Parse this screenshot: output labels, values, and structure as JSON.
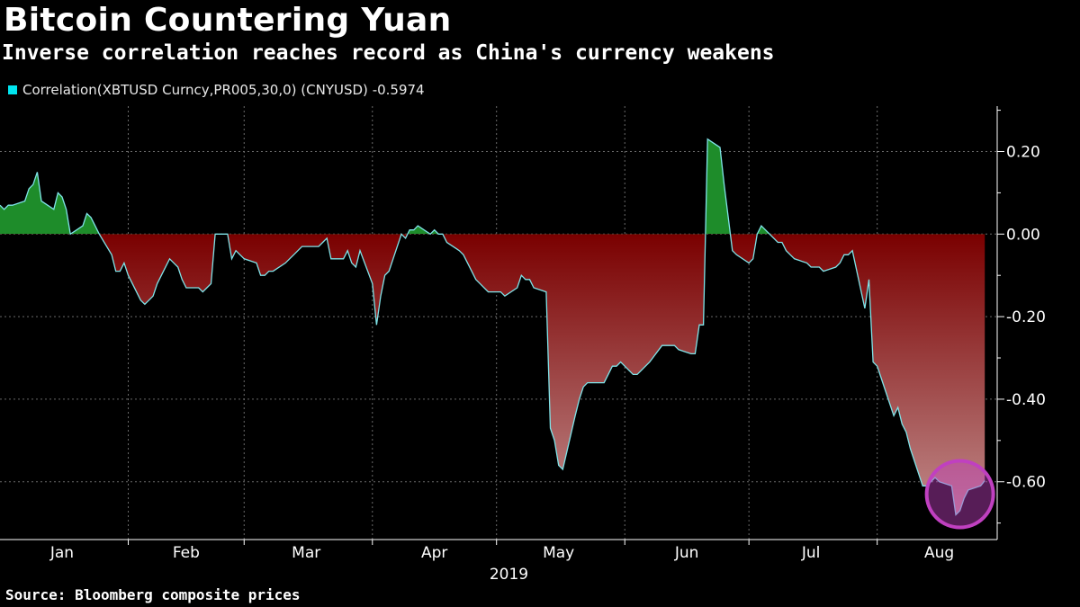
{
  "header": {
    "title": "Bitcoin Countering Yuan",
    "subtitle": "Inverse correlation reaches record as China's currency weakens"
  },
  "footer": {
    "source": "Source: Bloomberg composite prices"
  },
  "colors": {
    "background": "#000000",
    "line": "#7fe3e8",
    "positive_fill": "#1e8c2a",
    "negative_fill_top": "#7a0000",
    "negative_fill_bottom": "#c08a8a",
    "grid": "#6a6a6a",
    "highlight_circle": "#c040c0"
  },
  "chart_data": {
    "type": "area",
    "title": "Bitcoin Countering Yuan",
    "subtitle": "Inverse correlation reaches record as China's currency weakens",
    "legend": [
      {
        "name": "Correlation(XBTUSD Curncy,PR005,30,0) (CNYUSD)",
        "last_value": "-0.5974",
        "color": "#00e5ef"
      }
    ],
    "legend_position": "top-left",
    "y_axis": {
      "position": "right",
      "ticks": [
        0.2,
        0.0,
        -0.2,
        -0.4,
        -0.6
      ],
      "tick_labels": [
        "0.20",
        "0.00",
        "-0.20",
        "-0.40",
        "-0.60"
      ],
      "ylim": [
        -0.74,
        0.31
      ]
    },
    "x_axis": {
      "month_labels": [
        "Jan",
        "Feb",
        "Mar",
        "Apr",
        "May",
        "Jun",
        "Jul",
        "Aug"
      ],
      "year_label": "2019",
      "xlim": [
        "2019-01-01",
        "2019-08-30"
      ]
    },
    "grid": true,
    "highlight": {
      "shape": "circle",
      "around": "late Aug minimum",
      "center_date": "2019-08-21",
      "center_value": -0.63
    },
    "series": [
      {
        "name": "Correlation(XBTUSD Curncy,PR005,30,0) (CNYUSD)",
        "points": [
          [
            "2019-01-01",
            0.07
          ],
          [
            "2019-01-02",
            0.06
          ],
          [
            "2019-01-03",
            0.07
          ],
          [
            "2019-01-04",
            0.07
          ],
          [
            "2019-01-07",
            0.08
          ],
          [
            "2019-01-08",
            0.11
          ],
          [
            "2019-01-09",
            0.12
          ],
          [
            "2019-01-10",
            0.15
          ],
          [
            "2019-01-11",
            0.08
          ],
          [
            "2019-01-14",
            0.06
          ],
          [
            "2019-01-15",
            0.1
          ],
          [
            "2019-01-16",
            0.09
          ],
          [
            "2019-01-17",
            0.06
          ],
          [
            "2019-01-18",
            0.0
          ],
          [
            "2019-01-21",
            0.02
          ],
          [
            "2019-01-22",
            0.05
          ],
          [
            "2019-01-23",
            0.04
          ],
          [
            "2019-01-24",
            0.02
          ],
          [
            "2019-01-25",
            0.0
          ],
          [
            "2019-01-28",
            -0.05
          ],
          [
            "2019-01-29",
            -0.09
          ],
          [
            "2019-01-30",
            -0.09
          ],
          [
            "2019-01-31",
            -0.07
          ],
          [
            "2019-02-01",
            -0.1
          ],
          [
            "2019-02-04",
            -0.16
          ],
          [
            "2019-02-05",
            -0.17
          ],
          [
            "2019-02-06",
            -0.16
          ],
          [
            "2019-02-07",
            -0.15
          ],
          [
            "2019-02-08",
            -0.12
          ],
          [
            "2019-02-11",
            -0.06
          ],
          [
            "2019-02-12",
            -0.07
          ],
          [
            "2019-02-13",
            -0.08
          ],
          [
            "2019-02-14",
            -0.11
          ],
          [
            "2019-02-15",
            -0.13
          ],
          [
            "2019-02-18",
            -0.13
          ],
          [
            "2019-02-19",
            -0.14
          ],
          [
            "2019-02-20",
            -0.13
          ],
          [
            "2019-02-21",
            -0.12
          ],
          [
            "2019-02-22",
            0.0
          ],
          [
            "2019-02-25",
            0.0
          ],
          [
            "2019-02-26",
            -0.06
          ],
          [
            "2019-02-27",
            -0.04
          ],
          [
            "2019-02-28",
            -0.05
          ],
          [
            "2019-03-01",
            -0.06
          ],
          [
            "2019-03-04",
            -0.07
          ],
          [
            "2019-03-05",
            -0.1
          ],
          [
            "2019-03-06",
            -0.1
          ],
          [
            "2019-03-07",
            -0.09
          ],
          [
            "2019-03-08",
            -0.09
          ],
          [
            "2019-03-11",
            -0.07
          ],
          [
            "2019-03-12",
            -0.06
          ],
          [
            "2019-03-13",
            -0.05
          ],
          [
            "2019-03-14",
            -0.04
          ],
          [
            "2019-03-15",
            -0.03
          ],
          [
            "2019-03-18",
            -0.03
          ],
          [
            "2019-03-19",
            -0.03
          ],
          [
            "2019-03-20",
            -0.02
          ],
          [
            "2019-03-21",
            -0.01
          ],
          [
            "2019-03-22",
            -0.06
          ],
          [
            "2019-03-25",
            -0.06
          ],
          [
            "2019-03-26",
            -0.04
          ],
          [
            "2019-03-27",
            -0.07
          ],
          [
            "2019-03-28",
            -0.08
          ],
          [
            "2019-03-29",
            -0.04
          ],
          [
            "2019-04-01",
            -0.12
          ],
          [
            "2019-04-02",
            -0.22
          ],
          [
            "2019-04-03",
            -0.15
          ],
          [
            "2019-04-04",
            -0.1
          ],
          [
            "2019-04-05",
            -0.09
          ],
          [
            "2019-04-08",
            0.0
          ],
          [
            "2019-04-09",
            -0.01
          ],
          [
            "2019-04-10",
            0.01
          ],
          [
            "2019-04-11",
            0.01
          ],
          [
            "2019-04-12",
            0.02
          ],
          [
            "2019-04-15",
            0.0
          ],
          [
            "2019-04-16",
            0.01
          ],
          [
            "2019-04-17",
            0.0
          ],
          [
            "2019-04-18",
            0.0
          ],
          [
            "2019-04-19",
            -0.02
          ],
          [
            "2019-04-22",
            -0.04
          ],
          [
            "2019-04-23",
            -0.05
          ],
          [
            "2019-04-24",
            -0.07
          ],
          [
            "2019-04-25",
            -0.09
          ],
          [
            "2019-04-26",
            -0.11
          ],
          [
            "2019-04-29",
            -0.14
          ],
          [
            "2019-04-30",
            -0.14
          ],
          [
            "2019-05-01",
            -0.14
          ],
          [
            "2019-05-02",
            -0.14
          ],
          [
            "2019-05-03",
            -0.15
          ],
          [
            "2019-05-06",
            -0.13
          ],
          [
            "2019-05-07",
            -0.1
          ],
          [
            "2019-05-08",
            -0.11
          ],
          [
            "2019-05-09",
            -0.11
          ],
          [
            "2019-05-10",
            -0.13
          ],
          [
            "2019-05-13",
            -0.14
          ],
          [
            "2019-05-14",
            -0.47
          ],
          [
            "2019-05-15",
            -0.5
          ],
          [
            "2019-05-16",
            -0.56
          ],
          [
            "2019-05-17",
            -0.57
          ],
          [
            "2019-05-20",
            -0.44
          ],
          [
            "2019-05-21",
            -0.4
          ],
          [
            "2019-05-22",
            -0.37
          ],
          [
            "2019-05-23",
            -0.36
          ],
          [
            "2019-05-24",
            -0.36
          ],
          [
            "2019-05-27",
            -0.36
          ],
          [
            "2019-05-28",
            -0.34
          ],
          [
            "2019-05-29",
            -0.32
          ],
          [
            "2019-05-30",
            -0.32
          ],
          [
            "2019-05-31",
            -0.31
          ],
          [
            "2019-06-03",
            -0.34
          ],
          [
            "2019-06-04",
            -0.34
          ],
          [
            "2019-06-05",
            -0.33
          ],
          [
            "2019-06-06",
            -0.32
          ],
          [
            "2019-06-07",
            -0.31
          ],
          [
            "2019-06-10",
            -0.27
          ],
          [
            "2019-06-11",
            -0.27
          ],
          [
            "2019-06-12",
            -0.27
          ],
          [
            "2019-06-13",
            -0.27
          ],
          [
            "2019-06-14",
            -0.28
          ],
          [
            "2019-06-17",
            -0.29
          ],
          [
            "2019-06-18",
            -0.29
          ],
          [
            "2019-06-19",
            -0.22
          ],
          [
            "2019-06-20",
            -0.22
          ],
          [
            "2019-06-21",
            0.23
          ],
          [
            "2019-06-24",
            0.21
          ],
          [
            "2019-06-25",
            0.12
          ],
          [
            "2019-06-26",
            0.04
          ],
          [
            "2019-06-27",
            -0.04
          ],
          [
            "2019-06-28",
            -0.05
          ],
          [
            "2019-07-01",
            -0.07
          ],
          [
            "2019-07-02",
            -0.06
          ],
          [
            "2019-07-03",
            0.0
          ],
          [
            "2019-07-04",
            0.02
          ],
          [
            "2019-07-05",
            0.01
          ],
          [
            "2019-07-08",
            -0.02
          ],
          [
            "2019-07-09",
            -0.02
          ],
          [
            "2019-07-10",
            -0.04
          ],
          [
            "2019-07-11",
            -0.05
          ],
          [
            "2019-07-12",
            -0.06
          ],
          [
            "2019-07-15",
            -0.07
          ],
          [
            "2019-07-16",
            -0.08
          ],
          [
            "2019-07-17",
            -0.08
          ],
          [
            "2019-07-18",
            -0.08
          ],
          [
            "2019-07-19",
            -0.09
          ],
          [
            "2019-07-22",
            -0.08
          ],
          [
            "2019-07-23",
            -0.07
          ],
          [
            "2019-07-24",
            -0.05
          ],
          [
            "2019-07-25",
            -0.05
          ],
          [
            "2019-07-26",
            -0.04
          ],
          [
            "2019-07-29",
            -0.18
          ],
          [
            "2019-07-30",
            -0.11
          ],
          [
            "2019-07-31",
            -0.31
          ],
          [
            "2019-08-01",
            -0.32
          ],
          [
            "2019-08-02",
            -0.35
          ],
          [
            "2019-08-05",
            -0.44
          ],
          [
            "2019-08-06",
            -0.42
          ],
          [
            "2019-08-07",
            -0.46
          ],
          [
            "2019-08-08",
            -0.48
          ],
          [
            "2019-08-09",
            -0.52
          ],
          [
            "2019-08-12",
            -0.61
          ],
          [
            "2019-08-13",
            -0.61
          ],
          [
            "2019-08-14",
            -0.6
          ],
          [
            "2019-08-15",
            -0.59
          ],
          [
            "2019-08-16",
            -0.6
          ],
          [
            "2019-08-19",
            -0.61
          ],
          [
            "2019-08-20",
            -0.68
          ],
          [
            "2019-08-21",
            -0.67
          ],
          [
            "2019-08-22",
            -0.64
          ],
          [
            "2019-08-23",
            -0.62
          ],
          [
            "2019-08-26",
            -0.61
          ],
          [
            "2019-08-27",
            -0.5974
          ]
        ]
      }
    ]
  }
}
